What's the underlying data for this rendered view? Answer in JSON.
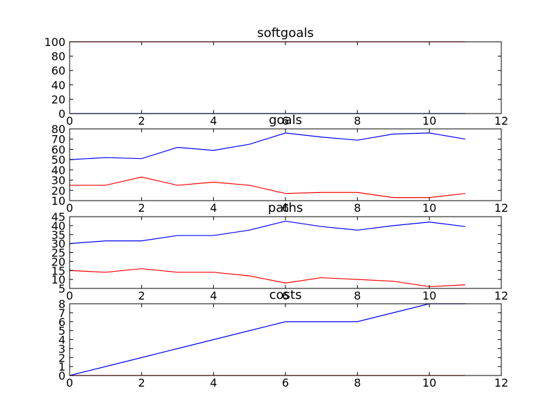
{
  "colors": {
    "series_blue": "#0000ff",
    "series_red": "#ff0000",
    "axis": "#000000",
    "background": "#ffffff"
  },
  "chart_data": [
    {
      "type": "line",
      "title": "softgoals",
      "xlim": [
        0,
        12
      ],
      "ylim": [
        0,
        100
      ],
      "xticks": [
        "0",
        "2",
        "4",
        "6",
        "8",
        "10",
        "12"
      ],
      "xtick_values": [
        0,
        2,
        4,
        6,
        8,
        10,
        12
      ],
      "yticks": [
        "0",
        "20",
        "40",
        "60",
        "80",
        "100"
      ],
      "ytick_values": [
        0,
        20,
        40,
        60,
        80,
        100
      ],
      "series": [
        {
          "color": "blue",
          "x": [
            0,
            1,
            2,
            3,
            4,
            5,
            6,
            7,
            8,
            9,
            10,
            11
          ],
          "y": [
            0,
            0,
            0,
            0,
            0,
            0,
            0,
            0,
            0,
            0,
            0,
            0
          ]
        },
        {
          "color": "red",
          "x": [
            0,
            1,
            2,
            3,
            4,
            5,
            6,
            7,
            8,
            9,
            10,
            11
          ],
          "y": [
            100,
            100,
            100,
            100,
            100,
            100,
            100,
            100,
            100,
            100,
            100,
            100
          ]
        }
      ]
    },
    {
      "type": "line",
      "title": "goals",
      "xlim": [
        0,
        12
      ],
      "ylim": [
        10,
        80
      ],
      "xticks": [
        "0",
        "2",
        "4",
        "6",
        "8",
        "10",
        "12"
      ],
      "xtick_values": [
        0,
        2,
        4,
        6,
        8,
        10,
        12
      ],
      "yticks": [
        "10",
        "20",
        "30",
        "40",
        "50",
        "60",
        "70",
        "80"
      ],
      "ytick_values": [
        10,
        20,
        30,
        40,
        50,
        60,
        70,
        80
      ],
      "series": [
        {
          "color": "blue",
          "x": [
            0,
            1,
            2,
            3,
            4,
            5,
            6,
            7,
            8,
            9,
            10,
            11
          ],
          "y": [
            50,
            52,
            51,
            62,
            59,
            65,
            76,
            72,
            69,
            75,
            76,
            70
          ]
        },
        {
          "color": "red",
          "x": [
            0,
            1,
            2,
            3,
            4,
            5,
            6,
            7,
            8,
            9,
            10,
            11
          ],
          "y": [
            25,
            25,
            33,
            25,
            28,
            25,
            17,
            18,
            18,
            13,
            13,
            17
          ]
        }
      ]
    },
    {
      "type": "line",
      "title": "paths",
      "xlim": [
        0,
        12
      ],
      "ylim": [
        5,
        45
      ],
      "xticks": [
        "0",
        "2",
        "4",
        "6",
        "8",
        "10",
        "12"
      ],
      "xtick_values": [
        0,
        2,
        4,
        6,
        8,
        10,
        12
      ],
      "yticks": [
        "5",
        "10",
        "15",
        "20",
        "25",
        "30",
        "35",
        "40",
        "45"
      ],
      "ytick_values": [
        5,
        10,
        15,
        20,
        25,
        30,
        35,
        40,
        45
      ],
      "series": [
        {
          "color": "blue",
          "x": [
            0,
            1,
            2,
            3,
            4,
            5,
            6,
            7,
            8,
            9,
            10,
            11
          ],
          "y": [
            30,
            31.5,
            31.5,
            34.5,
            34.5,
            37.5,
            42.5,
            39.5,
            37.5,
            40,
            42,
            39.5
          ]
        },
        {
          "color": "red",
          "x": [
            0,
            1,
            2,
            3,
            4,
            5,
            6,
            7,
            8,
            9,
            10,
            11
          ],
          "y": [
            15,
            14,
            16,
            14,
            14,
            12,
            8,
            11,
            10,
            9,
            6,
            7
          ]
        }
      ]
    },
    {
      "type": "line",
      "title": "costs",
      "xlim": [
        0,
        12
      ],
      "ylim": [
        0,
        8
      ],
      "xticks": [
        "0",
        "2",
        "4",
        "6",
        "8",
        "10",
        "12"
      ],
      "xtick_values": [
        0,
        2,
        4,
        6,
        8,
        10,
        12
      ],
      "yticks": [
        "0",
        "1",
        "2",
        "3",
        "4",
        "5",
        "6",
        "7",
        "8"
      ],
      "ytick_values": [
        0,
        1,
        2,
        3,
        4,
        5,
        6,
        7,
        8
      ],
      "series": [
        {
          "color": "blue",
          "x": [
            0,
            1,
            2,
            3,
            4,
            5,
            6,
            7,
            8,
            9,
            10,
            11
          ],
          "y": [
            0,
            1,
            2,
            3,
            4,
            5,
            6,
            6,
            6,
            7,
            8,
            8
          ]
        },
        {
          "color": "red",
          "x": [
            0,
            1,
            2,
            3,
            4,
            5,
            6,
            7,
            8,
            9,
            10,
            11
          ],
          "y": [
            0,
            0,
            0,
            0,
            0,
            0,
            0,
            0,
            0,
            0,
            0,
            0
          ]
        }
      ]
    }
  ]
}
